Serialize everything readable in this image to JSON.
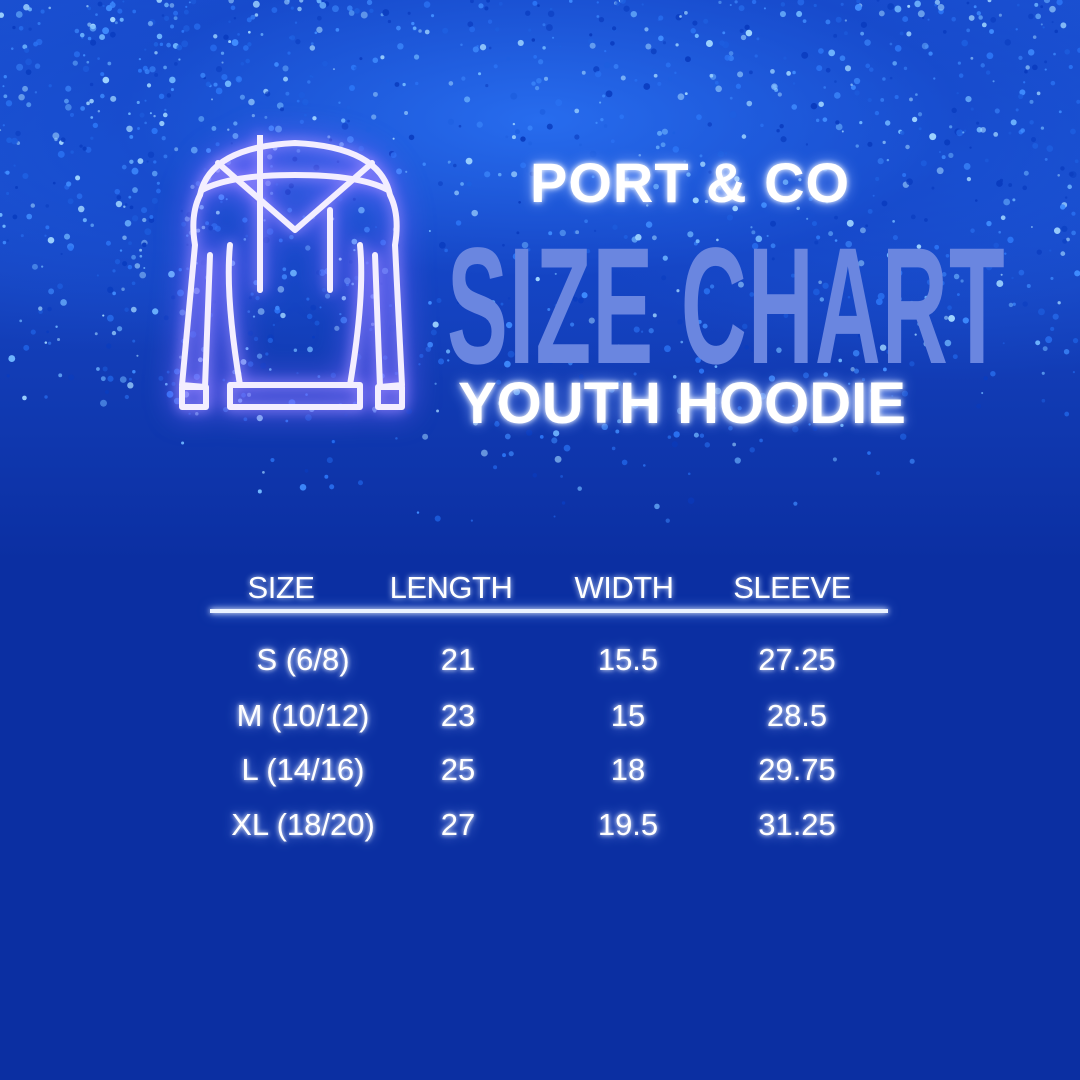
{
  "header": {
    "brand": "PORT & CO",
    "title": "SIZE CHART",
    "subtitle": "YOUTH HOODIE"
  },
  "icon": "hoodie-icon",
  "colors": {
    "background": "#0b2fa2",
    "title": "#6a86e0",
    "glow": "#8fb0ff",
    "hoodie_outline": "#f0eaff"
  },
  "table": {
    "columns": [
      "SIZE",
      "LENGTH",
      "WIDTH",
      "SLEEVE"
    ],
    "rows": [
      [
        "S (6/8)",
        "21",
        "15.5",
        "27.25"
      ],
      [
        "M (10/12)",
        "23",
        "15",
        "28.5"
      ],
      [
        "L (14/16)",
        "25",
        "18",
        "29.75"
      ],
      [
        "XL (18/20)",
        "27",
        "19.5",
        "31.25"
      ]
    ]
  }
}
